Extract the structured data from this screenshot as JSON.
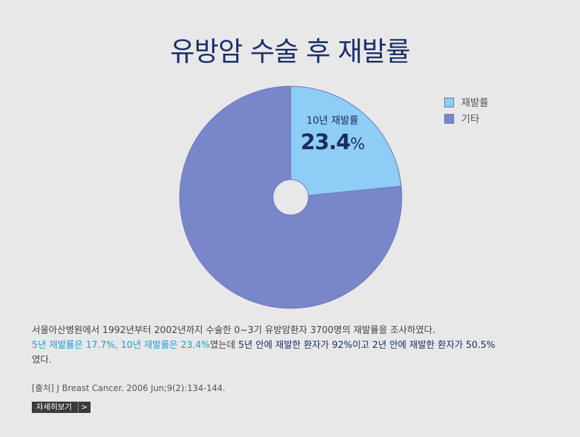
{
  "page": {
    "title": "유방암 수술 후 재발률"
  },
  "chart_data": {
    "type": "pie",
    "title": "유방암 수술 후 재발률",
    "slices": [
      {
        "label": "재발률",
        "value": 23.4,
        "color": "#8ecdf5"
      },
      {
        "label": "기타",
        "value": 76.6,
        "color": "#7a86ca"
      }
    ],
    "legend_position": "top-right",
    "annotation": {
      "label": "10년 재발률",
      "value": "23.4",
      "unit": "%"
    }
  },
  "description": {
    "line1": "서울아산병원에서 1992년부터 2002년까지 수술한 0~3기 유방암환자 3700명의 재발률을 조사하였다.",
    "line2_highlight": "5년 재발률은 17.7%, 10년 재발률은 23.4%",
    "line2_mid": "였는데 ",
    "line2_dark": "5년 안에 재발한 환자가 92%이고 2년 안에 재발한 환자가 50.5%",
    "line2_end": "였다."
  },
  "source": "[출처] J Breast Cancer. 2006 Jun;9(2):134-144.",
  "more_button": {
    "label": "자세히보기",
    "arrow": ">"
  }
}
